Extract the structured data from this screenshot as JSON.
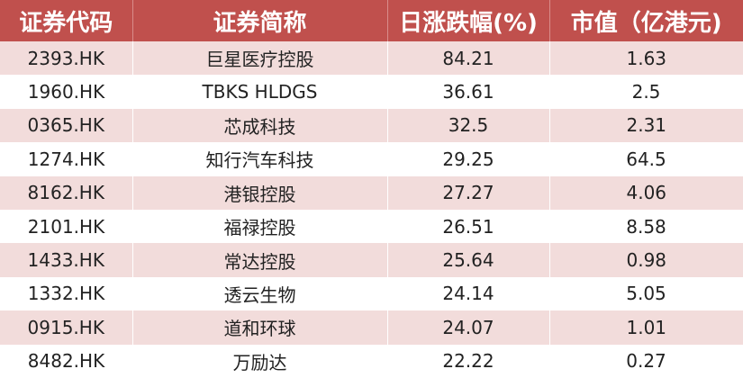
{
  "header": {
    "code": "证券代码",
    "name": "证券简称",
    "change": "日涨跌幅(%)",
    "market_cap": "市值（亿港元)"
  },
  "rows": [
    {
      "code": "2393.HK",
      "name": "巨星医疗控股",
      "change": "84.21",
      "market_cap": "1.63"
    },
    {
      "code": "1960.HK",
      "name": "TBKS HLDGS",
      "change": "36.61",
      "market_cap": "2.5"
    },
    {
      "code": "0365.HK",
      "name": "芯成科技",
      "change": "32.5",
      "market_cap": "2.31"
    },
    {
      "code": "1274.HK",
      "name": "知行汽车科技",
      "change": "29.25",
      "market_cap": "64.5"
    },
    {
      "code": "8162.HK",
      "name": "港银控股",
      "change": "27.27",
      "market_cap": "4.06"
    },
    {
      "code": "2101.HK",
      "name": "福禄控股",
      "change": "26.51",
      "market_cap": "8.58"
    },
    {
      "code": "1433.HK",
      "name": "常达控股",
      "change": "25.64",
      "market_cap": "0.98"
    },
    {
      "code": "1332.HK",
      "name": "透云生物",
      "change": "24.14",
      "market_cap": "5.05"
    },
    {
      "code": "0915.HK",
      "name": "道和环球",
      "change": "24.07",
      "market_cap": "1.01"
    },
    {
      "code": "8482.HK",
      "name": "万励达",
      "change": "22.22",
      "market_cap": "0.27"
    }
  ],
  "colors": {
    "header_bg": "#c0504d",
    "header_text": "#ffffff",
    "band_row": "#f2dcdb"
  }
}
